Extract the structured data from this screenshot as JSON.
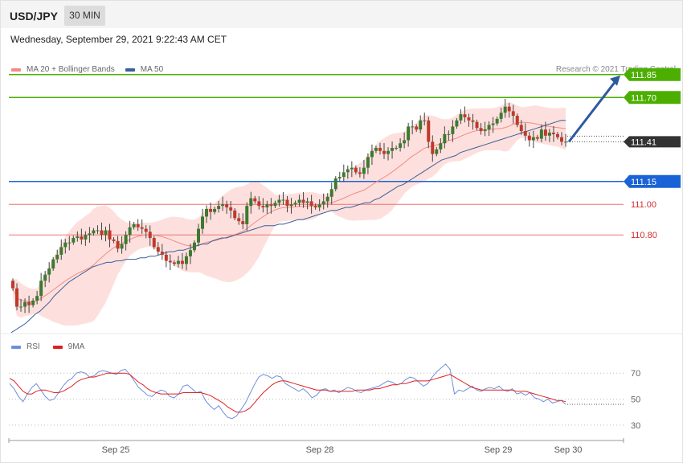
{
  "header": {
    "symbol": "USD/JPY",
    "timeframe": "30 MIN"
  },
  "datetime": "Wednesday, September 29, 2021 9:22:43 AM CET",
  "credit": "Research © 2021 Trading Central",
  "colors": {
    "bull": "#3d7a2e",
    "bear": "#c0392b",
    "bollinger_fill": "#fde0dd",
    "ma20": "#f28b82",
    "ma50": "#3a5f9c",
    "resistance": "#4caf00",
    "pivot": "#1a63d6",
    "support": "#e57373",
    "arrow": "#2c5aa0",
    "rsi": "#6f8fdc",
    "rsi_ma": "#e02020"
  },
  "chart_data": [
    {
      "type": "candlestick",
      "title": "",
      "legend": [
        {
          "name": "MA 20 + Bollinger Bands",
          "color": "#f28b82"
        },
        {
          "name": "MA 50",
          "color": "#3a5f9c"
        }
      ],
      "legend_position": "top-left",
      "ylim": [
        110.18,
        111.97
      ],
      "x_tick_labels": [
        "Sep 25",
        "Sep 28",
        "Sep 29",
        "Sep 30"
      ],
      "levels": [
        {
          "value": 111.85,
          "label": "111.85",
          "kind": "resistance"
        },
        {
          "value": 111.7,
          "label": "111.70",
          "kind": "resistance"
        },
        {
          "value": 111.41,
          "label": "111.41",
          "kind": "last"
        },
        {
          "value": 111.15,
          "label": "111.15",
          "kind": "pivot"
        },
        {
          "value": 111.0,
          "label": "111.00",
          "kind": "support"
        },
        {
          "value": 110.8,
          "label": "110.80",
          "kind": "support"
        }
      ],
      "closes": [
        110.45,
        110.33,
        110.33,
        110.36,
        110.34,
        110.37,
        110.4,
        110.5,
        110.54,
        110.58,
        110.64,
        110.67,
        110.72,
        110.75,
        110.75,
        110.78,
        110.79,
        110.77,
        110.8,
        110.81,
        110.83,
        110.83,
        110.8,
        110.83,
        110.77,
        110.76,
        110.71,
        110.74,
        110.8,
        110.85,
        110.87,
        110.85,
        110.84,
        110.82,
        110.78,
        110.72,
        110.69,
        110.67,
        110.63,
        110.62,
        110.61,
        110.63,
        110.61,
        110.66,
        110.7,
        110.75,
        110.84,
        110.92,
        110.97,
        110.95,
        110.97,
        110.99,
        111.0,
        110.98,
        110.96,
        110.91,
        110.89,
        110.87,
        110.99,
        111.04,
        111.02,
        110.99,
        110.98,
        111.0,
        110.99,
        111.01,
        111.03,
        111.03,
        110.99,
        111.0,
        111.01,
        111.03,
        111.01,
        111.02,
        110.99,
        110.98,
        111.0,
        111.02,
        111.05,
        111.1,
        111.17,
        111.18,
        111.21,
        111.23,
        111.24,
        111.21,
        111.2,
        111.24,
        111.31,
        111.35,
        111.37,
        111.35,
        111.33,
        111.35,
        111.37,
        111.37,
        111.4,
        111.42,
        111.51,
        111.51,
        111.49,
        111.55,
        111.55,
        111.41,
        111.33,
        111.36,
        111.4,
        111.46,
        111.46,
        111.51,
        111.55,
        111.59,
        111.57,
        111.55,
        111.54,
        111.5,
        111.48,
        111.49,
        111.52,
        111.53,
        111.56,
        111.6,
        111.64,
        111.61,
        111.58,
        111.52,
        111.48,
        111.45,
        111.42,
        111.44,
        111.43,
        111.49,
        111.45,
        111.47,
        111.46,
        111.44,
        111.41,
        111.41
      ],
      "ma50": [
        110.16,
        110.18,
        110.2,
        110.22,
        110.25,
        110.28,
        110.3,
        110.33,
        110.36,
        110.4,
        110.43,
        110.46,
        110.49,
        110.51,
        110.53,
        110.55,
        110.57,
        110.59,
        110.6,
        110.61,
        110.62,
        110.62,
        110.63,
        110.63,
        110.64,
        110.64,
        110.64,
        110.65,
        110.65,
        110.66,
        110.66,
        110.67,
        110.68,
        110.69,
        110.69,
        110.7,
        110.7,
        110.71,
        110.72,
        110.73,
        110.74,
        110.74,
        110.76,
        110.77,
        110.78,
        110.78,
        110.79,
        110.8,
        110.81,
        110.82,
        110.83,
        110.84,
        110.85,
        110.86,
        110.86,
        110.86,
        110.87,
        110.87,
        110.88,
        110.89,
        110.9,
        110.9,
        110.91,
        110.92,
        110.93,
        110.94,
        110.95,
        110.96,
        110.96,
        110.97,
        110.98,
        110.98,
        110.99,
        111.0,
        111.01,
        111.01,
        111.03,
        111.04,
        111.06,
        111.08,
        111.1,
        111.12,
        111.13,
        111.15,
        111.17,
        111.19,
        111.21,
        111.23,
        111.25,
        111.27,
        111.29,
        111.3,
        111.31,
        111.32,
        111.34,
        111.35,
        111.36,
        111.37,
        111.38,
        111.39,
        111.4,
        111.41,
        111.42,
        111.43,
        111.44,
        111.45,
        111.46,
        111.47,
        111.48,
        111.49,
        111.5,
        111.51,
        111.52,
        111.53,
        111.54,
        111.55,
        111.55
      ]
    },
    {
      "type": "line",
      "title": "",
      "legend": [
        {
          "name": "RSI",
          "color": "#6f8fdc"
        },
        {
          "name": "9MA",
          "color": "#e02020"
        }
      ],
      "legend_position": "top-left",
      "ylim": [
        20,
        85
      ],
      "y_ticks": [
        70,
        50,
        30
      ],
      "rsi": [
        62,
        58,
        52,
        48,
        54,
        59,
        62,
        57,
        52,
        49,
        50,
        55,
        60,
        64,
        66,
        70,
        71,
        70,
        67,
        68,
        71,
        72,
        71,
        70,
        69,
        72,
        73,
        69,
        64,
        59,
        56,
        53,
        52,
        55,
        57,
        56,
        52,
        51,
        54,
        60,
        61,
        58,
        55,
        56,
        49,
        45,
        42,
        45,
        40,
        36,
        35,
        37,
        42,
        47,
        54,
        61,
        67,
        69,
        68,
        66,
        68,
        67,
        62,
        60,
        58,
        56,
        58,
        55,
        51,
        53,
        57,
        58,
        56,
        57,
        55,
        57,
        59,
        58,
        56,
        55,
        57,
        58,
        59,
        60,
        62,
        64,
        63,
        61,
        62,
        65,
        67,
        66,
        63,
        60,
        62,
        67,
        71,
        74,
        77,
        73,
        54,
        57,
        56,
        58,
        60,
        57,
        56,
        58,
        59,
        58,
        60,
        57,
        56,
        58,
        54,
        55,
        53,
        55,
        51,
        50,
        48,
        50,
        47,
        48,
        49,
        46
      ],
      "ma9": [
        66,
        64,
        60,
        56,
        54,
        54,
        56,
        57,
        57,
        56,
        55,
        55,
        56,
        58,
        60,
        63,
        65,
        66,
        67,
        67,
        68,
        69,
        70,
        70,
        70,
        70,
        70,
        69,
        66,
        63,
        61,
        58,
        56,
        55,
        54,
        54,
        54,
        54,
        54,
        55,
        55,
        55,
        55,
        55,
        54,
        53,
        51,
        49,
        47,
        44,
        42,
        40,
        40,
        41,
        43,
        47,
        51,
        55,
        58,
        61,
        63,
        64,
        64,
        63,
        62,
        61,
        60,
        59,
        58,
        57,
        57,
        57,
        56,
        56,
        56,
        56,
        56,
        56,
        57,
        57,
        57,
        57,
        58,
        58,
        59,
        60,
        61,
        61,
        62,
        62,
        63,
        64,
        64,
        64,
        64,
        65,
        66,
        67,
        68,
        69,
        67,
        65,
        63,
        61,
        59,
        58,
        57,
        57,
        57,
        57,
        57,
        57,
        57,
        57,
        56,
        56,
        56,
        55,
        54,
        53,
        52,
        51,
        50,
        49,
        49,
        48
      ]
    }
  ]
}
